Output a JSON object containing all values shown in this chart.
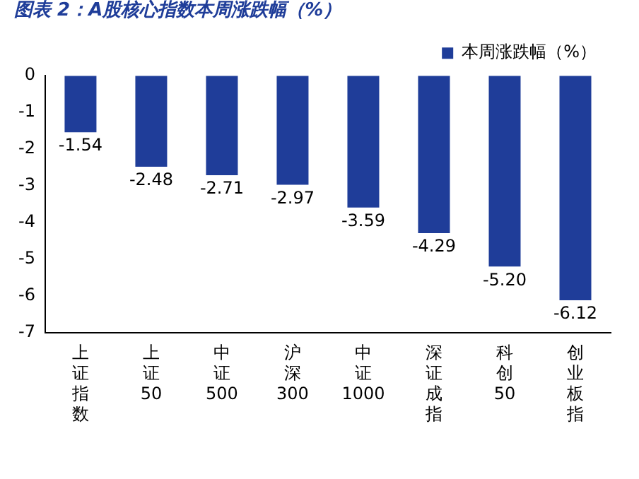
{
  "chart_data": {
    "type": "bar",
    "title": "图表 2：A股核心指数本周涨跌幅（%）",
    "categories": [
      "上证指数",
      "上证50",
      "中证500",
      "沪深300",
      "中证1000",
      "深证成指",
      "科创50",
      "创业板指"
    ],
    "series": [
      {
        "name": "本周涨跌幅（%）",
        "color": "#1f3d99",
        "values": [
          -1.54,
          -2.48,
          -2.71,
          -2.97,
          -3.59,
          -4.29,
          -5.2,
          -6.12
        ]
      }
    ],
    "value_labels": [
      "-1.54",
      "-2.48",
      "-2.71",
      "-2.97",
      "-3.59",
      "-4.29",
      "-5.20",
      "-6.12"
    ],
    "ylim": [
      -7,
      0
    ],
    "yticks": [
      -7,
      -6,
      -5,
      -4,
      -3,
      -2,
      -1,
      0
    ],
    "grid": false,
    "legend": "top right"
  }
}
